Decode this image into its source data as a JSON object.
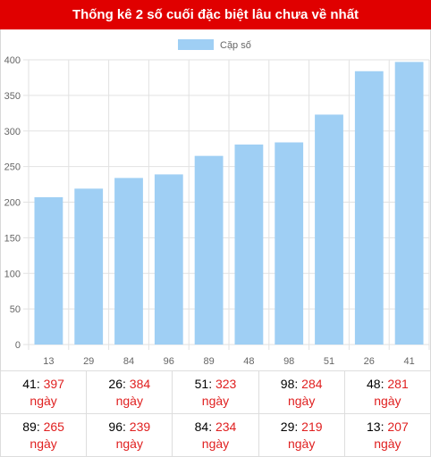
{
  "header": {
    "title": "Thống kê 2 số cuối đặc biệt lâu chưa về nhất"
  },
  "chart_data": {
    "type": "bar",
    "categories": [
      "13",
      "29",
      "84",
      "96",
      "89",
      "48",
      "98",
      "51",
      "26",
      "41"
    ],
    "series": [
      {
        "name": "Cặp số",
        "values": [
          207,
          219,
          234,
          239,
          265,
          281,
          284,
          323,
          384,
          397
        ],
        "color": "#9fcff4"
      }
    ],
    "ylim": [
      0,
      400
    ],
    "yticks": [
      0,
      50,
      100,
      150,
      200,
      250,
      300,
      350,
      400
    ],
    "legend_position": "top-center",
    "grid": true
  },
  "table": {
    "unit": "ngày",
    "rows": [
      [
        {
          "num": "41",
          "value": "397"
        },
        {
          "num": "26",
          "value": "384"
        },
        {
          "num": "51",
          "value": "323"
        },
        {
          "num": "98",
          "value": "284"
        },
        {
          "num": "48",
          "value": "281"
        }
      ],
      [
        {
          "num": "89",
          "value": "265"
        },
        {
          "num": "96",
          "value": "239"
        },
        {
          "num": "84",
          "value": "234"
        },
        {
          "num": "29",
          "value": "219"
        },
        {
          "num": "13",
          "value": "207"
        }
      ]
    ]
  }
}
